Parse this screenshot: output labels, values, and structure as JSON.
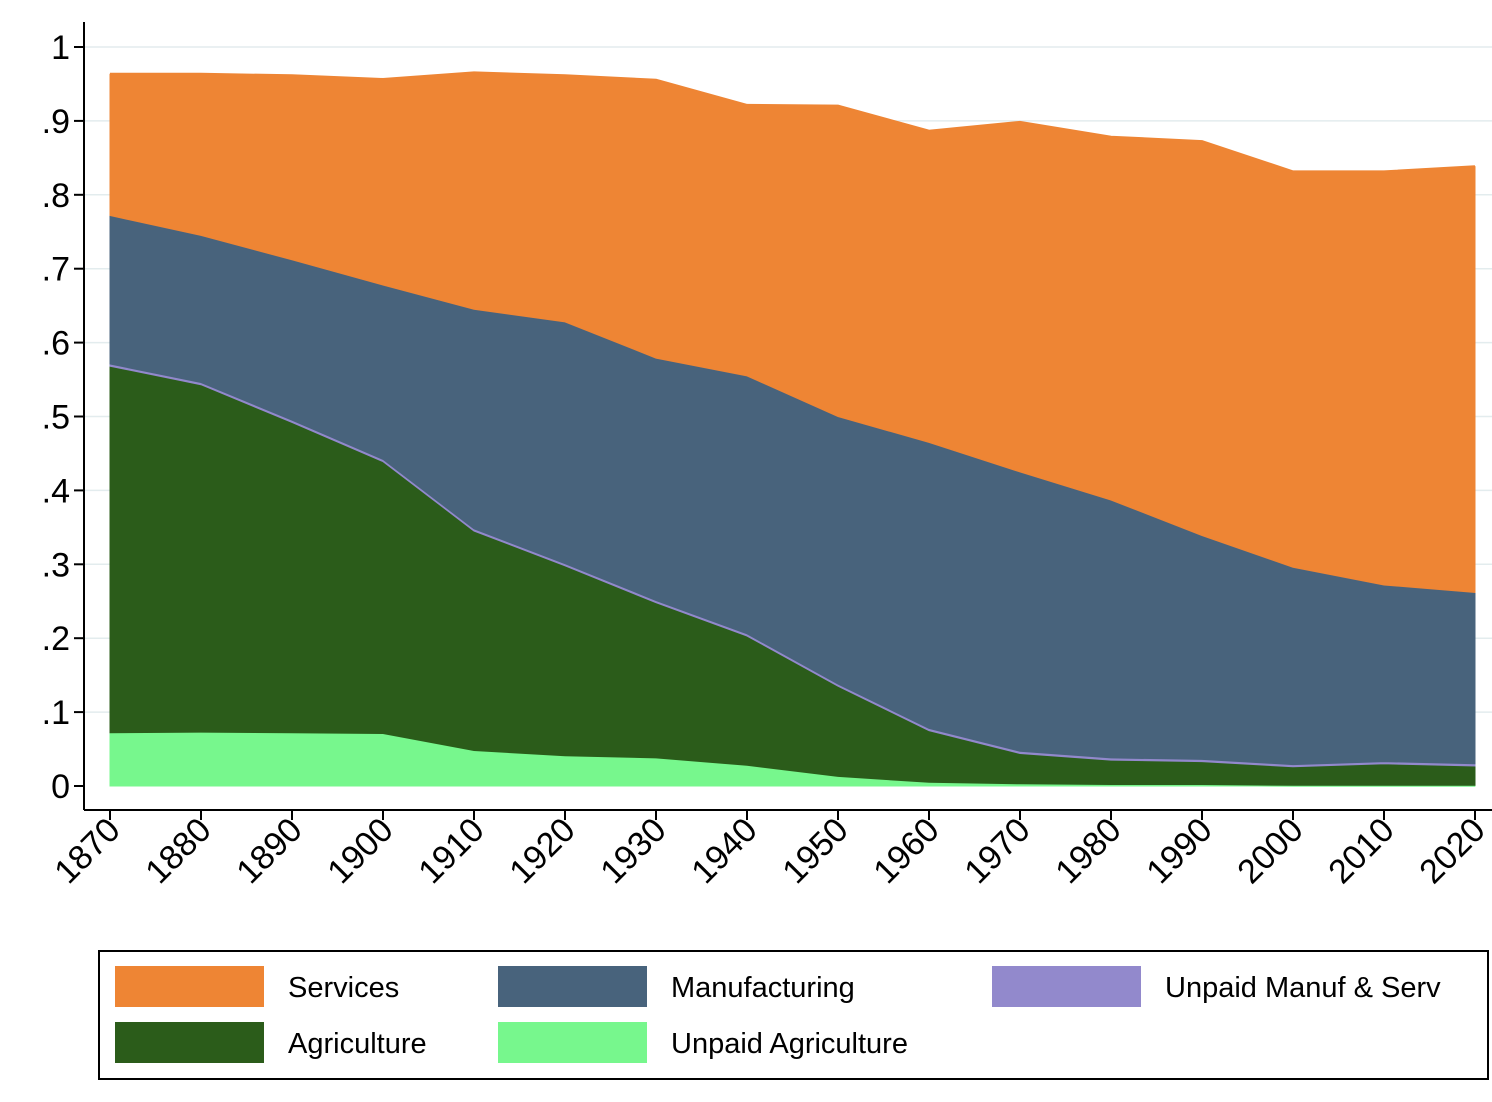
{
  "chart_data": {
    "type": "area",
    "stacked": true,
    "title": "",
    "xlabel": "",
    "ylabel": "",
    "x": [
      1870,
      1880,
      1890,
      1900,
      1910,
      1920,
      1930,
      1940,
      1950,
      1960,
      1970,
      1980,
      1990,
      2000,
      2010,
      2020
    ],
    "ylim": [
      0,
      1
    ],
    "yticks": [
      {
        "value": 0,
        "label": "0"
      },
      {
        "value": 0.1,
        "label": ".1"
      },
      {
        "value": 0.2,
        "label": ".2"
      },
      {
        "value": 0.3,
        "label": ".3"
      },
      {
        "value": 0.4,
        "label": ".4"
      },
      {
        "value": 0.5,
        "label": ".5"
      },
      {
        "value": 0.6,
        "label": ".6"
      },
      {
        "value": 0.7,
        "label": ".7"
      },
      {
        "value": 0.8,
        "label": ".8"
      },
      {
        "value": 0.9,
        "label": ".9"
      },
      {
        "value": 1,
        "label": "1"
      }
    ],
    "xticks": [
      "1870",
      "1880",
      "1890",
      "1900",
      "1910",
      "1920",
      "1930",
      "1940",
      "1950",
      "1960",
      "1970",
      "1980",
      "1990",
      "2000",
      "2010",
      "2020"
    ],
    "grid": true,
    "legend_position": "bottom",
    "series": [
      {
        "name": "Unpaid Agriculture",
        "color": "#77f78d",
        "values": [
          0.072,
          0.073,
          0.072,
          0.071,
          0.048,
          0.041,
          0.038,
          0.028,
          0.013,
          0.005,
          0.003,
          0.002,
          0.002,
          0.001,
          0.001,
          0.001
        ]
      },
      {
        "name": "Agriculture",
        "color": "#2b5c1a",
        "values": [
          0.496,
          0.47,
          0.42,
          0.368,
          0.297,
          0.257,
          0.21,
          0.175,
          0.122,
          0.07,
          0.041,
          0.033,
          0.031,
          0.025,
          0.029,
          0.026
        ]
      },
      {
        "name": "Unpaid Manuf & Serv",
        "color": "#9289cc",
        "values": [
          0.003,
          0.003,
          0.003,
          0.003,
          0.003,
          0.003,
          0.003,
          0.003,
          0.003,
          0.003,
          0.003,
          0.003,
          0.003,
          0.003,
          0.003,
          0.003
        ]
      },
      {
        "name": "Manufacturing",
        "color": "#48637c",
        "values": [
          0.201,
          0.199,
          0.217,
          0.236,
          0.297,
          0.327,
          0.328,
          0.349,
          0.362,
          0.387,
          0.378,
          0.349,
          0.303,
          0.267,
          0.239,
          0.232
        ]
      },
      {
        "name": "Services",
        "color": "#ee8534",
        "values": [
          0.191,
          0.218,
          0.249,
          0.278,
          0.32,
          0.333,
          0.376,
          0.366,
          0.42,
          0.421,
          0.473,
          0.491,
          0.533,
          0.535,
          0.559,
          0.576
        ]
      }
    ],
    "legend": [
      {
        "name": "Services",
        "color": "#ee8534"
      },
      {
        "name": "Manufacturing",
        "color": "#48637c"
      },
      {
        "name": "Unpaid Manuf & Serv",
        "color": "#9289cc"
      },
      {
        "name": "Agriculture",
        "color": "#2b5c1a"
      },
      {
        "name": "Unpaid Agriculture",
        "color": "#77f78d"
      }
    ]
  }
}
